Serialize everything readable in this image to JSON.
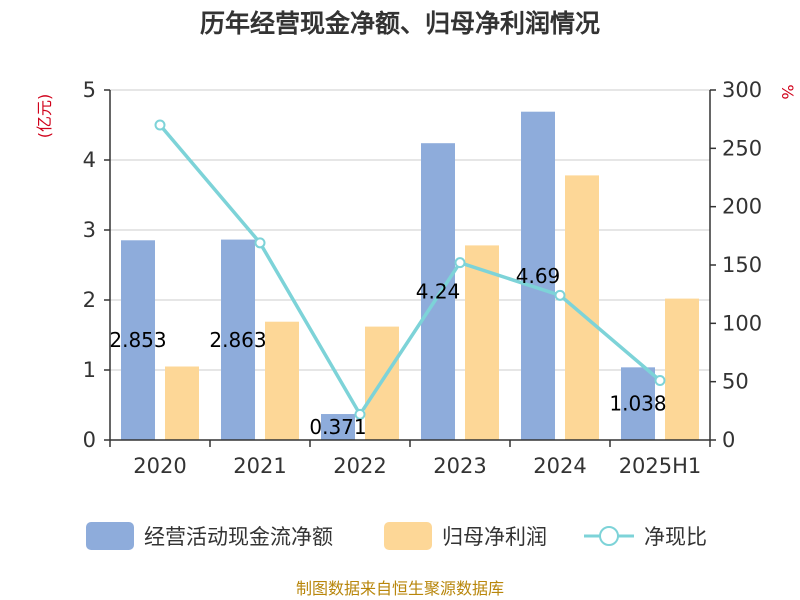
{
  "chart_data": {
    "type": "bar",
    "title": "历年经营现金净额、归母净利润情况",
    "categories": [
      "2020",
      "2021",
      "2022",
      "2023",
      "2024",
      "2025H1"
    ],
    "left_axis": {
      "unit": "(亿元)",
      "ticks": [
        "0",
        "1",
        "2",
        "3",
        "4",
        "5"
      ],
      "range": [
        0,
        5
      ]
    },
    "right_axis": {
      "unit": "%",
      "ticks": [
        "0",
        "50",
        "100",
        "150",
        "200",
        "250",
        "300"
      ],
      "range": [
        0,
        300
      ]
    },
    "series": [
      {
        "name": "经营活动现金流净额",
        "type": "bar",
        "axis": "left",
        "color": "#8eacdb",
        "values": [
          2.853,
          2.863,
          0.371,
          4.24,
          4.69,
          1.038
        ],
        "labels": [
          "2.853",
          "2.863",
          "0.371",
          "4.24",
          "4.69",
          "1.038"
        ]
      },
      {
        "name": "归母净利润",
        "type": "bar",
        "axis": "left",
        "color": "#fdd797",
        "values": [
          1.05,
          1.69,
          1.62,
          2.78,
          3.78,
          2.02
        ]
      },
      {
        "name": "净现比",
        "type": "line",
        "axis": "right",
        "color": "#7dd3d8",
        "values": [
          270,
          169,
          22,
          152,
          124,
          51
        ]
      }
    ],
    "grid": true,
    "legend_position": "bottom"
  },
  "footer": "制图数据来自恒生聚源数据库"
}
